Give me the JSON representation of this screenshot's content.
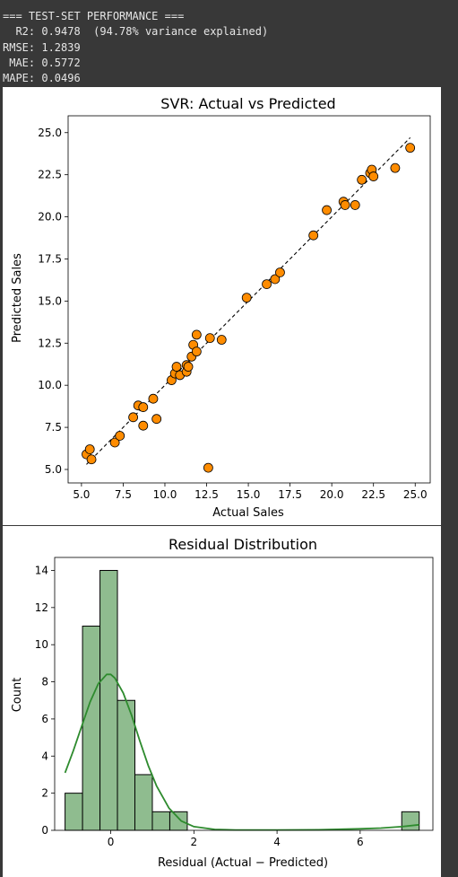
{
  "console": {
    "lines": [
      "=== TEST-SET PERFORMANCE ===",
      "  R2: 0.9478  (94.78% variance explained)",
      "RMSE: 1.2839",
      " MAE: 0.5772",
      "MAPE: 0.0496"
    ]
  },
  "chart_data": [
    {
      "type": "scatter",
      "title": "SVR: Actual vs Predicted",
      "xlabel": "Actual Sales",
      "ylabel": "Predicted Sales",
      "xlim": [
        4.2,
        25.9
      ],
      "ylim": [
        4.2,
        26.0
      ],
      "xticks": [
        "5.0",
        "7.5",
        "10.0",
        "12.5",
        "15.0",
        "17.5",
        "20.0",
        "22.5",
        "25.0"
      ],
      "yticks": [
        "5.0",
        "7.5",
        "10.0",
        "12.5",
        "15.0",
        "17.5",
        "20.0",
        "22.5",
        "25.0"
      ],
      "point_color": "#ff8c00",
      "reference_line": {
        "from": [
          5.3,
          5.3
        ],
        "to": [
          24.7,
          24.7
        ],
        "style": "dashed"
      },
      "x": [
        5.3,
        5.5,
        5.6,
        7.0,
        7.3,
        8.1,
        8.4,
        8.7,
        8.7,
        9.3,
        9.5,
        10.4,
        10.6,
        10.7,
        10.9,
        11.3,
        11.3,
        11.4,
        11.6,
        11.7,
        11.9,
        11.9,
        12.6,
        12.7,
        13.4,
        14.9,
        16.1,
        16.6,
        16.9,
        18.9,
        19.7,
        20.7,
        20.8,
        21.4,
        21.8,
        22.3,
        22.4,
        22.5,
        23.8,
        24.7
      ],
      "y": [
        5.9,
        6.2,
        5.6,
        6.6,
        7.0,
        8.1,
        8.8,
        7.6,
        8.7,
        9.2,
        8.0,
        10.3,
        10.7,
        11.1,
        10.6,
        10.8,
        11.2,
        11.1,
        11.7,
        12.4,
        12.0,
        13.0,
        5.1,
        12.8,
        12.7,
        15.2,
        16.0,
        16.3,
        16.7,
        18.9,
        20.4,
        20.9,
        20.7,
        20.7,
        22.2,
        22.6,
        22.8,
        22.4,
        22.9,
        24.1
      ]
    },
    {
      "type": "bar",
      "title": "Residual Distribution",
      "xlabel": "Residual (Actual − Predicted)",
      "ylabel": "Count",
      "xlim": [
        -1.35,
        7.75
      ],
      "ylim": [
        0,
        14.7
      ],
      "xticks": [
        "0",
        "2",
        "4",
        "6"
      ],
      "yticks": [
        "0",
        "2",
        "4",
        "6",
        "8",
        "10",
        "12",
        "14"
      ],
      "bar_color": "#8fbc8f",
      "kde_color": "#2e8b2e",
      "bins": [
        {
          "from": -1.1,
          "to": -0.68,
          "count": 2
        },
        {
          "from": -0.68,
          "to": -0.26,
          "count": 11
        },
        {
          "from": -0.26,
          "to": 0.16,
          "count": 14
        },
        {
          "from": 0.16,
          "to": 0.58,
          "count": 7
        },
        {
          "from": 0.58,
          "to": 1.0,
          "count": 3
        },
        {
          "from": 1.0,
          "to": 1.42,
          "count": 1
        },
        {
          "from": 1.42,
          "to": 1.84,
          "count": 1
        },
        {
          "from": 7.0,
          "to": 7.42,
          "count": 1
        }
      ],
      "kde": {
        "x": [
          -1.1,
          -0.9,
          -0.7,
          -0.5,
          -0.3,
          -0.1,
          0.0,
          0.1,
          0.3,
          0.5,
          0.7,
          0.9,
          1.1,
          1.4,
          1.7,
          2.0,
          2.5,
          3.0,
          4.0,
          5.0,
          6.0,
          6.5,
          7.0,
          7.42
        ],
        "y": [
          3.1,
          4.3,
          5.6,
          6.9,
          7.9,
          8.4,
          8.4,
          8.2,
          7.4,
          6.2,
          4.8,
          3.5,
          2.4,
          1.2,
          0.5,
          0.2,
          0.05,
          0.02,
          0.02,
          0.03,
          0.08,
          0.12,
          0.2,
          0.3
        ]
      }
    }
  ]
}
